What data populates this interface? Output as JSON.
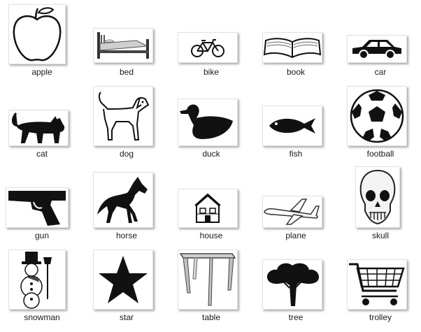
{
  "items": [
    {
      "label": "apple",
      "icon": "apple-icon"
    },
    {
      "label": "bed",
      "icon": "bed-icon"
    },
    {
      "label": "bike",
      "icon": "bike-icon"
    },
    {
      "label": "book",
      "icon": "book-icon"
    },
    {
      "label": "car",
      "icon": "car-icon"
    },
    {
      "label": "cat",
      "icon": "cat-icon"
    },
    {
      "label": "dog",
      "icon": "dog-icon"
    },
    {
      "label": "duck",
      "icon": "duck-icon"
    },
    {
      "label": "fish",
      "icon": "fish-icon"
    },
    {
      "label": "football",
      "icon": "football-icon"
    },
    {
      "label": "gun",
      "icon": "gun-icon"
    },
    {
      "label": "horse",
      "icon": "horse-icon"
    },
    {
      "label": "house",
      "icon": "house-icon"
    },
    {
      "label": "plane",
      "icon": "plane-icon"
    },
    {
      "label": "skull",
      "icon": "skull-icon"
    },
    {
      "label": "snowman",
      "icon": "snowman-icon"
    },
    {
      "label": "star",
      "icon": "star-icon"
    },
    {
      "label": "table",
      "icon": "table-icon"
    },
    {
      "label": "tree",
      "icon": "tree-icon"
    },
    {
      "label": "trolley",
      "icon": "trolley-icon"
    }
  ]
}
